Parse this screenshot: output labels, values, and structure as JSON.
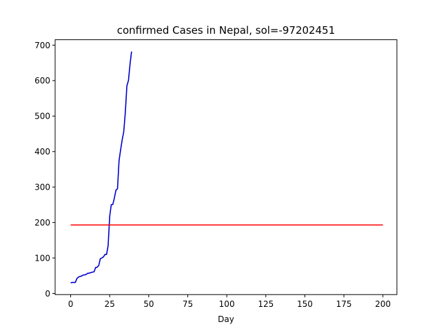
{
  "chart_data": {
    "type": "line",
    "title": "confirmed Cases in Nepal, sol=-97202451",
    "xlabel": "Day",
    "ylabel": "",
    "xlim": [
      -9.95,
      208.95
    ],
    "ylim": [
      -3.3,
      715.3
    ],
    "xticks": [
      0,
      25,
      50,
      75,
      100,
      125,
      150,
      175,
      200
    ],
    "yticks": [
      0,
      100,
      200,
      300,
      400,
      500,
      600,
      700
    ],
    "grid": false,
    "series": [
      {
        "color": "#0000cc",
        "x": [
          0,
          1,
          2,
          3,
          4,
          5,
          6,
          7,
          8,
          9,
          10,
          11,
          12,
          13,
          14,
          15,
          16,
          17,
          18,
          19,
          20,
          21,
          22,
          23,
          24,
          25,
          26,
          27,
          28,
          29,
          30,
          31,
          32,
          33,
          34,
          35,
          36,
          37,
          38,
          39
        ],
        "y": [
          30,
          31,
          31,
          31,
          42,
          46,
          48,
          49,
          52,
          52,
          54,
          57,
          57,
          59,
          60,
          61,
          73,
          74,
          79,
          98,
          100,
          103,
          110,
          110,
          135,
          217,
          250,
          251,
          269,
          291,
          295,
          375,
          405,
          433,
          456,
          510,
          585,
          600,
          645,
          682
        ]
      },
      {
        "color": "#ff0000",
        "x": [
          0,
          200
        ],
        "y": [
          193,
          193
        ]
      }
    ]
  }
}
